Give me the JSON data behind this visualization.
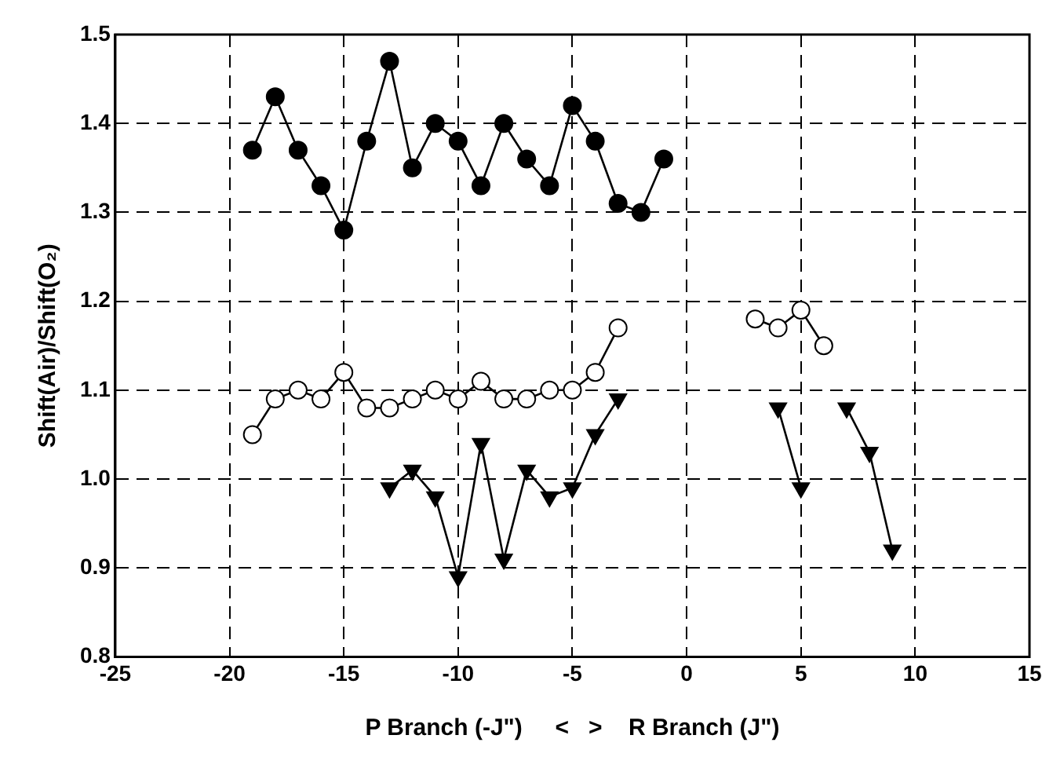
{
  "chart_data": {
    "type": "line",
    "xlabel": "P Branch (-J\")     <   >    R Branch (J\")",
    "ylabel": "Shift(Air)/Shift(O₂)",
    "xlim": [
      -25,
      15
    ],
    "xticks": [
      -25,
      -20,
      -15,
      -10,
      -5,
      0,
      5,
      10,
      15
    ],
    "ylim": [
      0.8,
      1.5
    ],
    "yticks": [
      0.8,
      0.9,
      {
        "value": 1,
        "label": "1.0"
      },
      1.1,
      1.2,
      1.3,
      1.4,
      1.5
    ],
    "grid": true,
    "series": [
      {
        "color": "#000000",
        "marker": "circle",
        "x": [
          -19,
          -18,
          -17,
          -16,
          -15,
          -14,
          -13,
          -12,
          -11,
          -10,
          -9,
          -8,
          -7,
          -6,
          -5,
          -4,
          -3,
          -2,
          -1
        ],
        "values": [
          1.37,
          1.43,
          1.37,
          1.33,
          1.28,
          1.38,
          1.47,
          1.35,
          1.4,
          1.38,
          1.33,
          1.4,
          1.36,
          1.33,
          1.42,
          1.38,
          1.31,
          1.3,
          1.36
        ]
      },
      {
        "color": "#000000",
        "colors": [
          "#ffffff",
          "#ffffff",
          "#ffffff",
          "#ffffff",
          "#ffffff",
          "#ffffff",
          "#ffffff",
          "#ffffff",
          "#ffffff",
          "#ffffff",
          "#ffffff",
          "#ffffff",
          "#ffffff",
          "#ffffff",
          "#ffffff",
          "#ffffff",
          "#ffffff",
          "#ffffff",
          "#ffffff",
          "#ffffff",
          "#ffffff",
          "#ffffff"
        ],
        "marker": "circle",
        "x": [
          -19,
          -18,
          -17,
          -16,
          -15,
          -14,
          -13,
          -12,
          -11,
          -10,
          -9,
          -8,
          -7,
          -6,
          -5,
          -4,
          -3,
          0,
          3,
          4,
          5,
          6
        ],
        "values": [
          1.05,
          1.09,
          1.1,
          1.09,
          1.12,
          1.08,
          1.08,
          1.09,
          1.1,
          1.09,
          1.11,
          1.09,
          1.09,
          1.1,
          1.1,
          1.12,
          1.17,
          null,
          1.18,
          1.17,
          1.19,
          1.15
        ]
      },
      {
        "color": "#000000",
        "marker": "triangle",
        "x": [
          -13,
          -12,
          -11,
          -10,
          -9,
          -8,
          -7,
          -6,
          -5,
          -4,
          -3,
          0,
          4,
          5,
          6,
          7,
          8,
          9
        ],
        "values": [
          0.99,
          1.01,
          0.98,
          0.89,
          1.04,
          0.91,
          1.01,
          0.98,
          0.99,
          1.05,
          1.09,
          null,
          1.08,
          0.99,
          null,
          1.08,
          1.03,
          0.92
        ]
      }
    ]
  }
}
